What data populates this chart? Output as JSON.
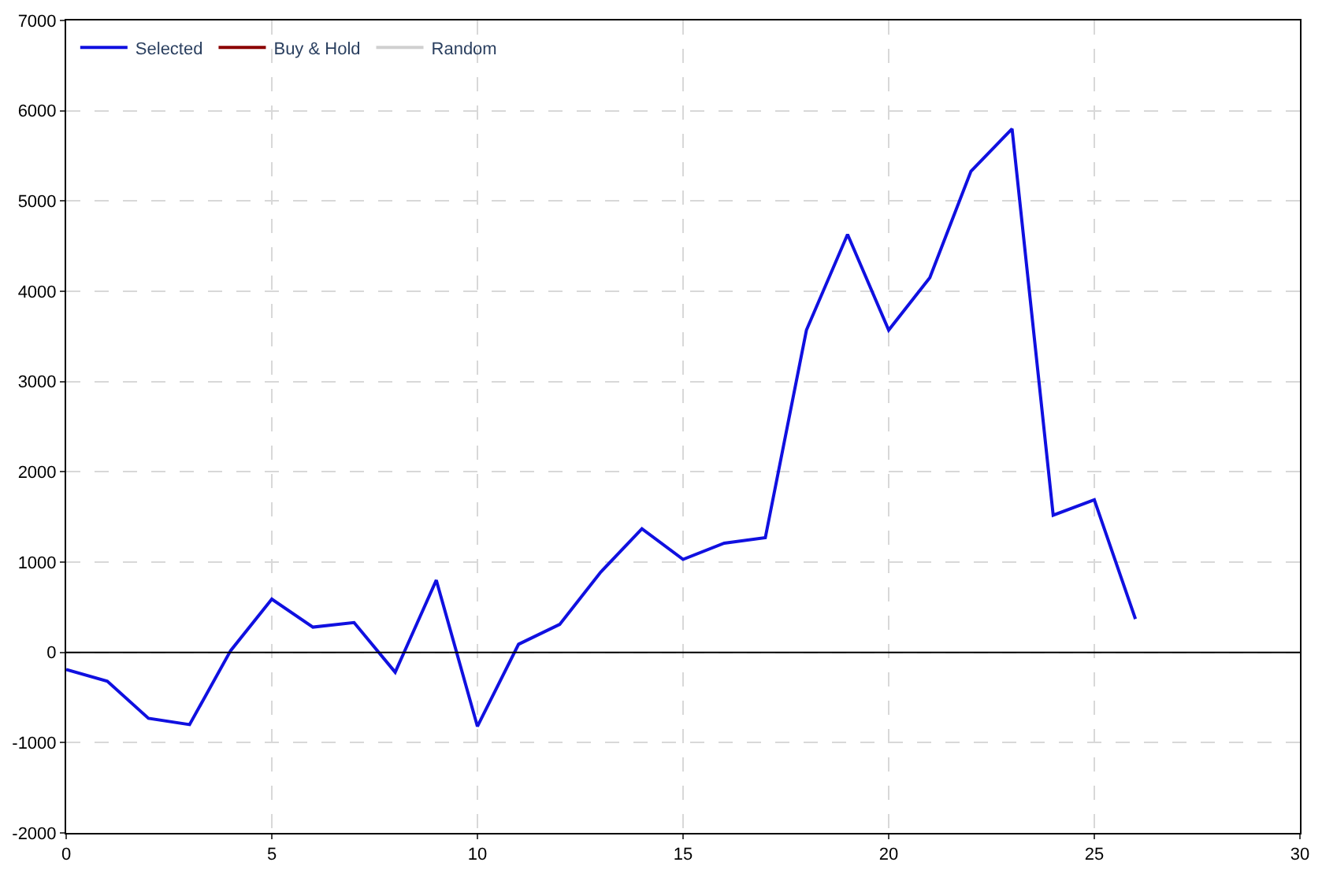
{
  "chart_data": {
    "type": "line",
    "x": [
      0,
      1,
      2,
      3,
      4,
      5,
      6,
      7,
      8,
      9,
      10,
      11,
      12,
      13,
      14,
      15,
      16,
      17,
      18,
      19,
      20,
      21,
      22,
      23,
      24,
      25,
      26
    ],
    "series": [
      {
        "name": "Selected",
        "color": "#1010e0",
        "values": [
          -190,
          -320,
          -730,
          -800,
          20,
          590,
          280,
          330,
          -220,
          800,
          -820,
          90,
          310,
          890,
          1370,
          1030,
          1210,
          1270,
          3570,
          4630,
          3570,
          4150,
          5330,
          5800,
          1520,
          1690,
          370
        ]
      },
      {
        "name": "Buy & Hold",
        "color": "#8b0000",
        "values": [
          null,
          null,
          null,
          null,
          null,
          null,
          null,
          null,
          null,
          null,
          null,
          null,
          null,
          null,
          null,
          null,
          null,
          null,
          null,
          null,
          null,
          null,
          null,
          null,
          null,
          null,
          null
        ]
      },
      {
        "name": "Random",
        "color": "#d0d0d0",
        "values": [
          null,
          null,
          null,
          null,
          null,
          null,
          null,
          null,
          null,
          null,
          null,
          null,
          null,
          null,
          null,
          null,
          null,
          null,
          null,
          null,
          null,
          null,
          null,
          null,
          null,
          null,
          null
        ]
      }
    ],
    "xlim": [
      0,
      30
    ],
    "xticks": [
      0,
      5,
      10,
      15,
      20,
      25,
      30
    ],
    "ylim": [
      -2000,
      7000
    ],
    "yticks": [
      -2000,
      -1000,
      0,
      1000,
      2000,
      3000,
      4000,
      5000,
      6000,
      7000
    ],
    "ref_lines": [
      {
        "axis": "y",
        "value": 0,
        "color": "#000000"
      }
    ],
    "grid": true,
    "legend": "top left",
    "marker": "none",
    "line_style": "solid"
  }
}
